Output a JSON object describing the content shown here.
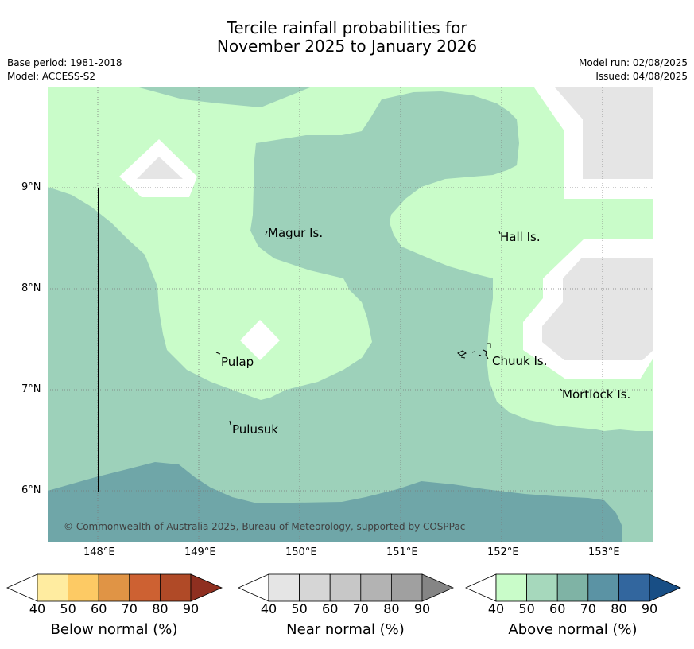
{
  "title": {
    "line1": "Tercile rainfall probabilities for",
    "line2": "November 2025 to January 2026"
  },
  "meta": {
    "base_period": "Base period: 1981-2018",
    "model": "Model: ACCESS-S2",
    "model_run": "Model run: 02/08/2025",
    "issued": "Issued: 04/08/2025"
  },
  "map": {
    "x_ticks": [
      "148°E",
      "149°E",
      "150°E",
      "151°E",
      "152°E",
      "153°E"
    ],
    "y_ticks": [
      "9°N",
      "8°N",
      "7°N",
      "6°N"
    ],
    "places": [
      "Magur Is.",
      "Hall Is.",
      "Pulap",
      "Chuuk Is.",
      "Mortlock Is.",
      "Pulusuk"
    ],
    "copyright": "© Commonwealth of Australia 2025, Bureau of Meteorology, supported by COSPPac",
    "colors": {
      "above_40": "#c9fcc9",
      "above_50": "#9dd1ba",
      "above_60": "#6fa6a8",
      "near_40": "#e5e5e5",
      "ocean_white": "#ffffff"
    }
  },
  "colorbars": [
    {
      "label": "Below normal (%)",
      "ticks": [
        "40",
        "50",
        "60",
        "70",
        "80",
        "90"
      ],
      "colors": [
        "#ffffff",
        "#ffeca0",
        "#fdca64",
        "#e09445",
        "#cd6132",
        "#b04a27",
        "#8f2f20"
      ]
    },
    {
      "label": "Near normal (%)",
      "ticks": [
        "40",
        "50",
        "60",
        "70",
        "80",
        "90"
      ],
      "colors": [
        "#ffffff",
        "#e5e5e5",
        "#d6d6d6",
        "#c7c7c7",
        "#b3b3b3",
        "#a0a0a0",
        "#858585"
      ]
    },
    {
      "label": "Above normal (%)",
      "ticks": [
        "40",
        "50",
        "60",
        "70",
        "80",
        "90"
      ],
      "colors": [
        "#ffffff",
        "#c9fcc9",
        "#a6d8bc",
        "#7fb3a5",
        "#5b93a4",
        "#32669e",
        "#184e85"
      ]
    }
  ]
}
